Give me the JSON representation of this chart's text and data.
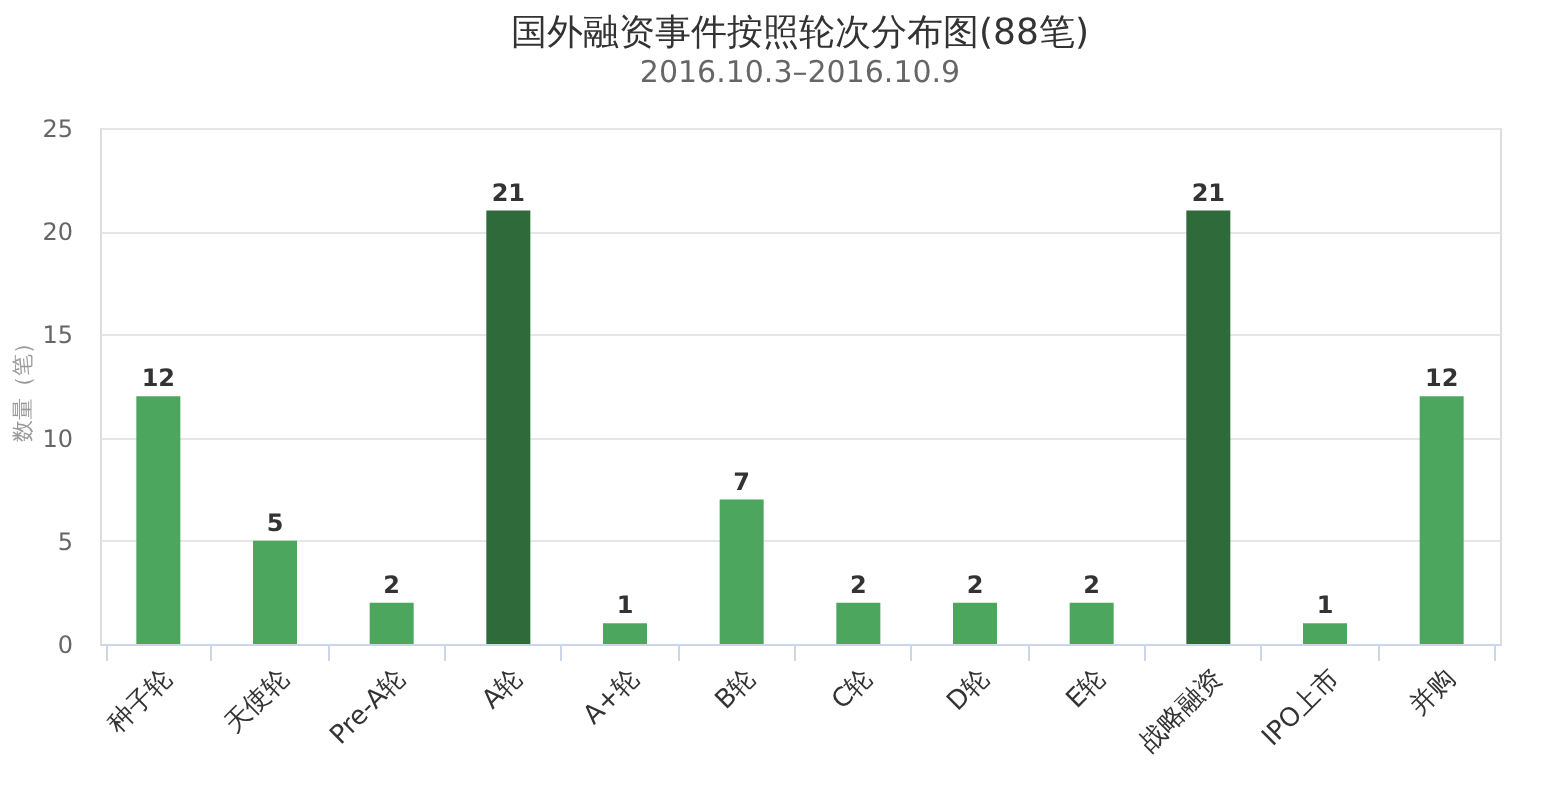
{
  "chart_data": {
    "type": "bar",
    "title": "国外融资事件按照轮次分布图(88笔)",
    "subtitle": "2016.10.3–2016.10.9",
    "ylabel": "数量（笔）",
    "categories": [
      "种子轮",
      "天使轮",
      "Pre-A轮",
      "A轮",
      "A+轮",
      "B轮",
      "C轮",
      "D轮",
      "E轮",
      "战略融资",
      "IPO上市",
      "并购"
    ],
    "values": [
      12,
      5,
      2,
      21,
      1,
      7,
      2,
      2,
      2,
      21,
      1,
      12
    ],
    "colors": [
      "#4ca65e",
      "#4ca65e",
      "#4ca65e",
      "#2f6a3b",
      "#4ca65e",
      "#4ca65e",
      "#4ca65e",
      "#4ca65e",
      "#4ca65e",
      "#2f6a3b",
      "#4ca65e",
      "#4ca65e"
    ],
    "ylim": [
      0,
      25
    ],
    "yticks": [
      0,
      5,
      10,
      15,
      20,
      25
    ],
    "grid": "y",
    "data_labels": true
  }
}
